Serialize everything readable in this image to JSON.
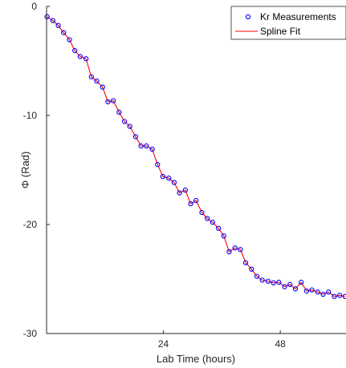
{
  "chart_data": {
    "type": "scatter",
    "xlabel": "Lab Time (hours)",
    "ylabel": "Φ (Rad)",
    "xlim": [
      0,
      61.5
    ],
    "ylim": [
      -30,
      0
    ],
    "xticks": [
      24,
      48
    ],
    "yticks": [
      0,
      -10,
      -20,
      -30
    ],
    "grid": false,
    "legend_position": "top-right",
    "series": [
      {
        "name": "Kr Measurements",
        "style": "markers",
        "marker": "circle",
        "color": "#0000ff",
        "x": [
          0.1,
          1.3,
          2.4,
          3.5,
          4.7,
          5.8,
          6.9,
          8.1,
          9.2,
          10.3,
          11.5,
          12.6,
          13.7,
          14.9,
          16.0,
          17.1,
          18.3,
          19.4,
          20.5,
          21.7,
          22.8,
          23.9,
          25.1,
          26.2,
          27.3,
          28.5,
          29.6,
          30.7,
          31.9,
          33.0,
          34.1,
          35.3,
          36.4,
          37.5,
          38.7,
          39.8,
          40.9,
          42.1,
          43.2,
          44.3,
          45.5,
          46.6,
          47.7,
          48.9,
          50.0,
          51.1,
          52.3,
          53.4,
          54.5,
          55.7,
          56.8,
          57.9,
          59.1,
          60.2,
          61.3
        ],
        "y": [
          -0.95,
          -1.3,
          -1.75,
          -2.4,
          -3.05,
          -4.05,
          -4.6,
          -4.8,
          -6.45,
          -6.85,
          -7.4,
          -8.75,
          -8.65,
          -9.7,
          -10.55,
          -11.0,
          -11.95,
          -12.8,
          -12.8,
          -13.1,
          -14.5,
          -15.6,
          -15.75,
          -16.15,
          -17.1,
          -16.85,
          -18.1,
          -17.8,
          -18.9,
          -19.45,
          -19.8,
          -20.35,
          -21.05,
          -22.5,
          -22.15,
          -22.3,
          -23.5,
          -24.1,
          -24.75,
          -25.1,
          -25.2,
          -25.35,
          -25.3,
          -25.7,
          -25.5,
          -25.9,
          -25.3,
          -26.1,
          -26.0,
          -26.2,
          -26.4,
          -26.2,
          -26.6,
          -26.5,
          -26.6
        ]
      },
      {
        "name": "Spline Fit",
        "style": "line",
        "color": "#ff0000",
        "x": [
          0.1,
          1.3,
          2.4,
          3.5,
          4.7,
          5.8,
          6.9,
          8.1,
          9.2,
          10.3,
          11.5,
          12.6,
          13.7,
          14.9,
          16.0,
          17.1,
          18.3,
          19.4,
          20.5,
          21.7,
          22.8,
          23.9,
          25.1,
          26.2,
          27.3,
          28.5,
          29.6,
          30.7,
          31.9,
          33.0,
          34.1,
          35.3,
          36.4,
          37.5,
          38.7,
          39.8,
          40.9,
          42.1,
          43.2,
          44.3,
          45.5,
          46.6,
          47.7,
          48.9,
          50.0,
          51.1,
          52.3,
          53.4,
          54.5,
          55.7,
          56.8,
          57.9,
          59.1,
          60.2,
          61.3
        ],
        "y": [
          -0.95,
          -1.3,
          -1.75,
          -2.4,
          -3.05,
          -4.05,
          -4.6,
          -4.8,
          -6.45,
          -6.85,
          -7.4,
          -8.75,
          -8.65,
          -9.7,
          -10.55,
          -11.0,
          -11.95,
          -12.8,
          -12.8,
          -13.1,
          -14.5,
          -15.6,
          -15.75,
          -16.15,
          -17.1,
          -16.85,
          -18.1,
          -17.8,
          -18.9,
          -19.45,
          -19.8,
          -20.35,
          -21.05,
          -22.5,
          -22.15,
          -22.3,
          -23.5,
          -24.1,
          -24.75,
          -25.1,
          -25.2,
          -25.35,
          -25.3,
          -25.7,
          -25.5,
          -25.9,
          -25.3,
          -26.1,
          -26.0,
          -26.2,
          -26.4,
          -26.2,
          -26.6,
          -26.5,
          -26.6
        ]
      }
    ]
  }
}
